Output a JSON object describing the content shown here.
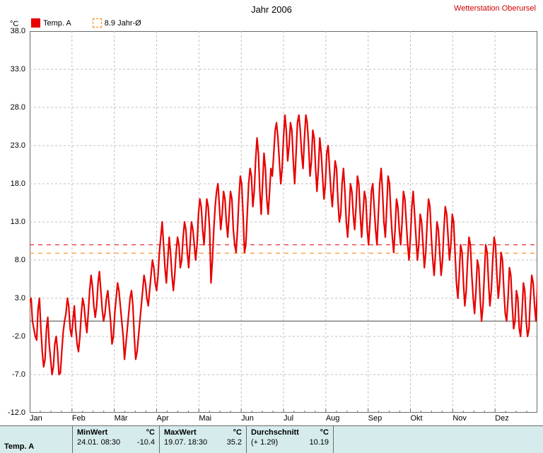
{
  "title": "Jahr 2006",
  "station": "Wetterstation Oberursel",
  "y_unit": "°C",
  "legend": [
    {
      "label": "Temp. A",
      "color": "#e80000",
      "style": "solid",
      "filled": true
    },
    {
      "label": "8.9 Jahr-Ø",
      "color": "#ff8000",
      "style": "dashed",
      "filled": false
    }
  ],
  "chart": {
    "type": "line",
    "background_color": "#ffffff",
    "plot_border_color": "#6b6b6b",
    "grid_color": "#bfbfbf",
    "grid_dash": "3,3",
    "zero_line_color": "#6b6b6b",
    "series_color": "#e80000",
    "series_width": 2.2,
    "ylim": [
      -12,
      38
    ],
    "ytick_start": -12,
    "ytick_step": 5,
    "ytick_count": 11,
    "ytick_labels": [
      "-12.0",
      "-7.0",
      "-2.0",
      "3.0",
      "8.0",
      "13.0",
      "18.0",
      "23.0",
      "28.0",
      "33.0",
      "38.0"
    ],
    "x_labels": [
      "Jan",
      "Feb",
      "Mär",
      "Apr",
      "Mai",
      "Jun",
      "Jul",
      "Aug",
      "Sep",
      "Okt",
      "Nov",
      "Dez"
    ],
    "x_major_count": 12,
    "x_points_total": 365,
    "ref_lines": [
      {
        "y": 10.0,
        "color": "#e80000",
        "dash": "6,6",
        "width": 1
      },
      {
        "y": 8.9,
        "color": "#ff8000",
        "dash": "6,6",
        "width": 1
      }
    ],
    "series": [
      2.5,
      3,
      0,
      -1,
      -2,
      -2.5,
      1.5,
      3,
      -1,
      -4,
      -6,
      -5,
      -1,
      0.5,
      -3,
      -5,
      -7,
      -6,
      -3,
      -2,
      -4,
      -7,
      -6.8,
      -4,
      -1.5,
      0,
      1,
      3,
      2,
      -1,
      -2,
      0,
      2,
      -1,
      -3,
      -4,
      -2,
      1,
      3,
      2,
      0,
      -1.5,
      1,
      4,
      6,
      4.5,
      2,
      0.5,
      2,
      5,
      6.5,
      4,
      1.5,
      0,
      1,
      3,
      4,
      2,
      0,
      -3,
      -2,
      1,
      3,
      5,
      4,
      2,
      0,
      -2,
      -5,
      -3,
      -1,
      1,
      3,
      4,
      2,
      -2,
      -5,
      -4,
      -2,
      0,
      2,
      4,
      6,
      5,
      3,
      2,
      4,
      6,
      8,
      7,
      5,
      4,
      6,
      9,
      11,
      13,
      10,
      7,
      5,
      8,
      11,
      9,
      6,
      4,
      6,
      9,
      11,
      10,
      7,
      8,
      11,
      13,
      12,
      9,
      7,
      10,
      13,
      12,
      10,
      8,
      10,
      14,
      16,
      15,
      12,
      10,
      13,
      16,
      15,
      12,
      5,
      8,
      12,
      15,
      17,
      18,
      15,
      12,
      14,
      17,
      16,
      13,
      11,
      14,
      17,
      16,
      12,
      10,
      9,
      12,
      16,
      19,
      18,
      14,
      9,
      10,
      14,
      18,
      20,
      19,
      15,
      17,
      21,
      24,
      22,
      17,
      14,
      18,
      22,
      20,
      16,
      14,
      17,
      20,
      19,
      22,
      25,
      26,
      24,
      21,
      18,
      20,
      24,
      27,
      25,
      21,
      23,
      26,
      25,
      21,
      18,
      22,
      26,
      27,
      25,
      22,
      20,
      24,
      27,
      26,
      23,
      19,
      21,
      25,
      24,
      20,
      17,
      20,
      24,
      22,
      19,
      16,
      18,
      22,
      23,
      20,
      17,
      15,
      18,
      21,
      20,
      16,
      13,
      14,
      18,
      20,
      17,
      13,
      11,
      14,
      18,
      17,
      14,
      12,
      15,
      19,
      18,
      14,
      11,
      14,
      17,
      16,
      12,
      10,
      13,
      17,
      18,
      15,
      12,
      10,
      14,
      18,
      20,
      17,
      13,
      11,
      15,
      19,
      18,
      14,
      11,
      9,
      12,
      16,
      15,
      12,
      10,
      13,
      17,
      16,
      13,
      10,
      8,
      11,
      15,
      17,
      14,
      11,
      8,
      10,
      14,
      13,
      10,
      7,
      9,
      13,
      16,
      15,
      11,
      8,
      6,
      9,
      13,
      12,
      9,
      6,
      8,
      12,
      15,
      14,
      11,
      8,
      10,
      14,
      13,
      9,
      5,
      3,
      6,
      10,
      9,
      5,
      2,
      4,
      8,
      11,
      10,
      6,
      3,
      1,
      4,
      8,
      7,
      3,
      0,
      2,
      6,
      10,
      9,
      5,
      2,
      4,
      8,
      11,
      10,
      6,
      3,
      5,
      9,
      8,
      4,
      1,
      0,
      3,
      7,
      6,
      2,
      -1,
      0,
      4,
      3,
      -1,
      -2,
      1,
      5,
      4,
      0,
      -2,
      -1,
      3,
      6,
      5,
      2,
      0,
      4,
      8
    ]
  },
  "stats": {
    "row_label": "Temp. A",
    "unit": "°C",
    "cells": [
      {
        "header": "MinWert",
        "text": "24.01.  08:30",
        "value": "-10.4"
      },
      {
        "header": "MaxWert",
        "text": "19.07.  18:30",
        "value": "35.2"
      },
      {
        "header": "Durchschnitt",
        "text": "(+ 1.29)",
        "value": "10.19"
      }
    ]
  }
}
